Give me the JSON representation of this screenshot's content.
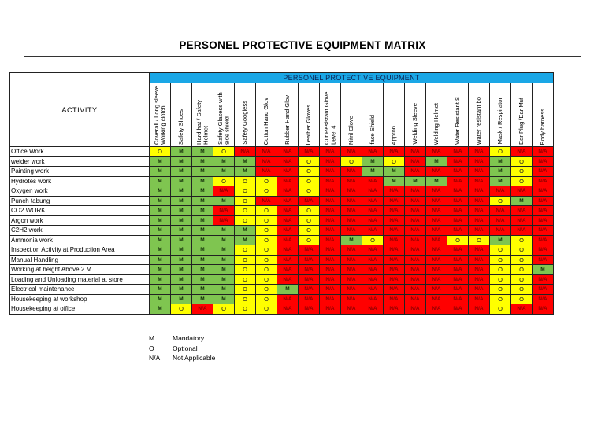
{
  "title": "PERSONEL PROTECTIVE EQUIPMENT MATRIX",
  "table": {
    "activity_header": "ACTIVITY",
    "group_header": "PERSONEL PROTECTIVE EQUIPMENT",
    "columns": [
      "Coverall / Long sleeve Working clotch",
      "Safety Shoes",
      "Hard hat / Safety Helmet",
      "Safety Glasess with side shield",
      "Safety Googless",
      "Cotton Hand Glov",
      "Rubber Hand Glov",
      "Leather Gloves",
      "Cut Resistant Glove Level 4",
      "Nitril Glove",
      "face Shield",
      "Appron",
      "Welding Sleeve",
      "Welding Helmet",
      "Water Resistant S",
      "Water resistant bo",
      "Mask / Respirator",
      "Ear Plug /Ear Muf",
      "Body harness"
    ],
    "rows": [
      {
        "activity": "Office Work",
        "values": [
          "O",
          "M",
          "M",
          "O",
          "N/A",
          "N/A",
          "N/A",
          "N/A",
          "N/A",
          "N/A",
          "N/A",
          "N/A",
          "N/A",
          "N/A",
          "N/A",
          "N/A",
          "O",
          "N/A",
          "N/A"
        ]
      },
      {
        "activity": "welder work",
        "values": [
          "M",
          "M",
          "M",
          "M",
          "M",
          "N/A",
          "N/A",
          "O",
          "N/A",
          "O",
          "M",
          "O",
          "N/A",
          "M",
          "N/A",
          "N/A",
          "M",
          "O",
          "N/A"
        ]
      },
      {
        "activity": "Painting work",
        "values": [
          "M",
          "M",
          "M",
          "M",
          "M",
          "N/A",
          "N/A",
          "O",
          "N/A",
          "N/A",
          "M",
          "M",
          "N/A",
          "N/A",
          "N/A",
          "N/A",
          "M",
          "O",
          "N/A"
        ]
      },
      {
        "activity": "Hydrotes work",
        "values": [
          "M",
          "M",
          "M",
          "O",
          "O",
          "O",
          "N/A",
          "O",
          "N/A",
          "N/A",
          "N/A",
          "M",
          "M",
          "M",
          "N/A",
          "N/A",
          "M",
          "O",
          "N/A"
        ]
      },
      {
        "activity": "Oxygen work",
        "values": [
          "M",
          "M",
          "M",
          "N/A",
          "O",
          "O",
          "N/A",
          "O",
          "N/A",
          "N/A",
          "N/A",
          "N/A",
          "N/A",
          "N/A",
          "N/A",
          "N/A",
          "N/A",
          "N/A",
          "N/A"
        ]
      },
      {
        "activity": "Punch tabung",
        "values": [
          "M",
          "M",
          "M",
          "M",
          "O",
          "N/A",
          "N/A",
          "N/A",
          "N/A",
          "N/A",
          "N/A",
          "N/A",
          "N/A",
          "N/A",
          "N/A",
          "N/A",
          "O",
          "M",
          "N/A"
        ]
      },
      {
        "activity": "CO2 WORK",
        "values": [
          "M",
          "M",
          "M",
          "N/A",
          "O",
          "O",
          "N/A",
          "O",
          "N/A",
          "N/A",
          "N/A",
          "N/A",
          "N/A",
          "N/A",
          "N/A",
          "N/A",
          "N/A",
          "N/A",
          "N/A"
        ]
      },
      {
        "activity": "Argon work",
        "values": [
          "M",
          "M",
          "M",
          "N/A",
          "O",
          "O",
          "N/A",
          "O",
          "N/A",
          "N/A",
          "N/A",
          "N/A",
          "N/A",
          "N/A",
          "N/A",
          "N/A",
          "N/A",
          "N/A",
          "N/A"
        ]
      },
      {
        "activity": "C2H2 work",
        "values": [
          "M",
          "M",
          "M",
          "M",
          "M",
          "O",
          "N/A",
          "O",
          "N/A",
          "N/A",
          "N/A",
          "N/A",
          "N/A",
          "N/A",
          "N/A",
          "N/A",
          "N/A",
          "N/A",
          "N/A"
        ]
      },
      {
        "activity": "Ammonia work",
        "values": [
          "M",
          "M",
          "M",
          "M",
          "M",
          "O",
          "N/A",
          "O",
          "N/A",
          "M",
          "O",
          "N/A",
          "N/A",
          "N/A",
          "O",
          "O",
          "M",
          "O",
          "N/A"
        ]
      },
      {
        "activity": "Inspection Activity at Production Area",
        "values": [
          "M",
          "M",
          "M",
          "M",
          "O",
          "O",
          "N/A",
          "N/A",
          "N/A",
          "N/A",
          "N/A",
          "N/A",
          "N/A",
          "N/A",
          "N/A",
          "N/A",
          "O",
          "O",
          "N/A"
        ]
      },
      {
        "activity": "Manual Handling",
        "values": [
          "M",
          "M",
          "M",
          "M",
          "O",
          "O",
          "N/A",
          "N/A",
          "N/A",
          "N/A",
          "N/A",
          "N/A",
          "N/A",
          "N/A",
          "N/A",
          "N/A",
          "O",
          "O",
          "N/A"
        ]
      },
      {
        "activity": "Working at height Above 2 M",
        "values": [
          "M",
          "M",
          "M",
          "M",
          "O",
          "O",
          "N/A",
          "N/A",
          "N/A",
          "N/A",
          "N/A",
          "N/A",
          "N/A",
          "N/A",
          "N/A",
          "N/A",
          "O",
          "O",
          "M"
        ]
      },
      {
        "activity": "Loading and Unloading material at store",
        "values": [
          "M",
          "M",
          "M",
          "M",
          "O",
          "O",
          "N/A",
          "N/A",
          "N/A",
          "N/A",
          "N/A",
          "N/A",
          "N/A",
          "N/A",
          "N/A",
          "N/A",
          "O",
          "O",
          "N/A"
        ]
      },
      {
        "activity": "Electrical maintenance",
        "values": [
          "M",
          "M",
          "M",
          "M",
          "O",
          "O",
          "M",
          "N/A",
          "N/A",
          "N/A",
          "N/A",
          "N/A",
          "N/A",
          "N/A",
          "N/A",
          "N/A",
          "O",
          "O",
          "N/A"
        ]
      },
      {
        "activity": "Housekeeping at workshop",
        "values": [
          "M",
          "M",
          "M",
          "M",
          "O",
          "O",
          "N/A",
          "N/A",
          "N/A",
          "N/A",
          "N/A",
          "N/A",
          "N/A",
          "N/A",
          "N/A",
          "N/A",
          "O",
          "O",
          "N/A"
        ]
      },
      {
        "activity": "Housekeeping at office",
        "values": [
          "M",
          "O",
          "N/A",
          "O",
          "O",
          "O",
          "N/A",
          "N/A",
          "N/A",
          "N/A",
          "N/A",
          "N/A",
          "N/A",
          "N/A",
          "N/A",
          "N/A",
          "O",
          "N/A",
          "N/A"
        ]
      }
    ]
  },
  "legend": [
    {
      "key": "M",
      "label": "Mandatory"
    },
    {
      "key": "O",
      "label": "Optional"
    },
    {
      "key": "N/A",
      "label": "Not Applicable"
    }
  ],
  "colors": {
    "mandatory": "#7fc550",
    "optional": "#ffff00",
    "not_applicable": "#ff0000",
    "group_header": "#1aa7e6"
  }
}
